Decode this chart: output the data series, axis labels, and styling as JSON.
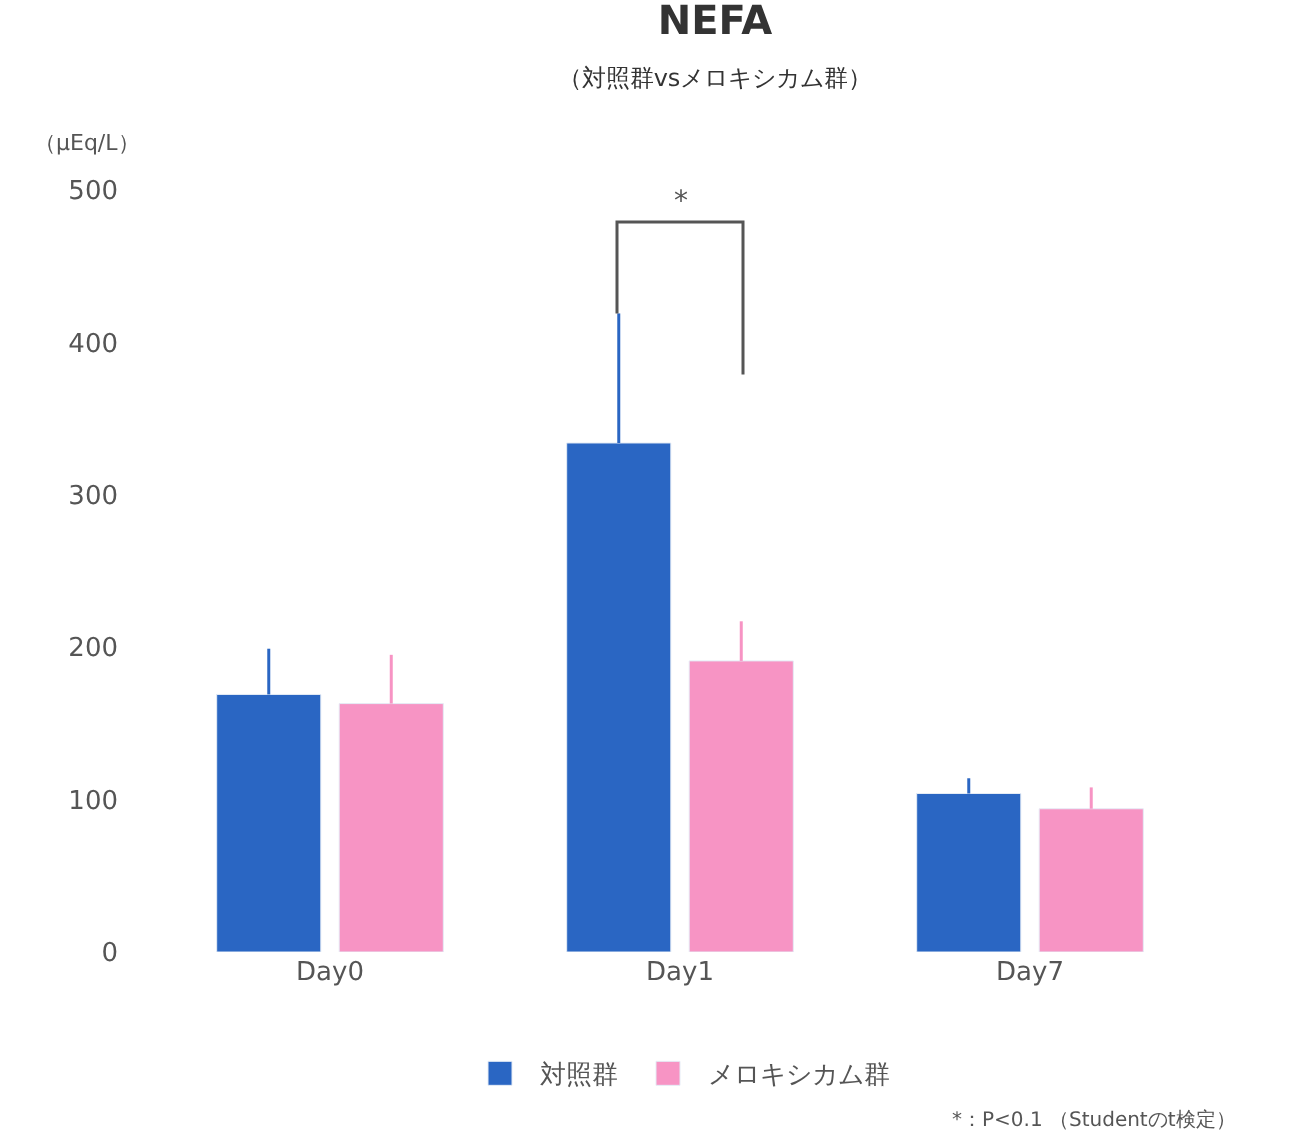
{
  "chart_data": {
    "type": "bar",
    "title": "NEFA",
    "subtitle": "（対照群vsメロキシカム群）",
    "ylabel": "（μEq/L）",
    "categories": [
      "Day0",
      "Day1",
      "Day7"
    ],
    "series": [
      {
        "name": "対照群",
        "color": "#2a66c3",
        "values": [
          169,
          334,
          104
        ],
        "errors": [
          [
            169,
            199
          ],
          [
            334,
            419
          ],
          [
            104,
            114
          ]
        ]
      },
      {
        "name": "メロキシカム群",
        "color": "#f794c4",
        "values": [
          163,
          191,
          94
        ],
        "errors": [
          [
            163,
            195
          ],
          [
            191,
            217
          ],
          [
            94,
            108
          ]
        ]
      }
    ],
    "ylim": [
      0,
      500
    ],
    "yticks": [
      0,
      100,
      200,
      300,
      400,
      500
    ],
    "legend": "bottom",
    "annotations": [
      "*",
      "*：P<0.1 （Studentのt検定）"
    ]
  }
}
